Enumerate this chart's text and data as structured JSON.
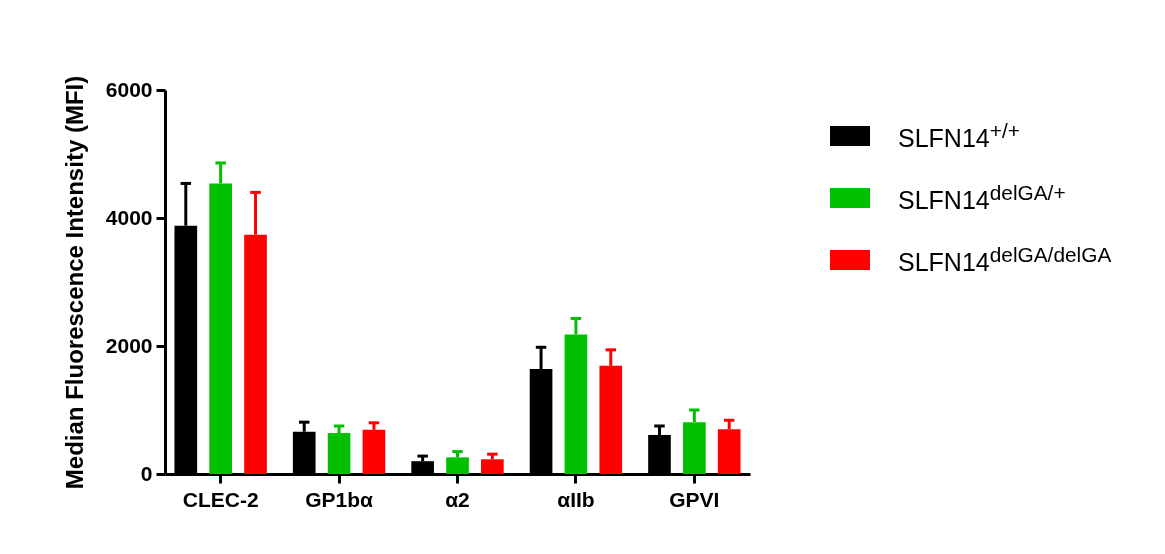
{
  "chart_data": {
    "type": "bar",
    "ylabel": "Median Fluorescence Intensity (MFI)",
    "categories": [
      "CLEC-2",
      "GP1bα",
      "α2",
      "αIIb",
      "GPVI"
    ],
    "series": [
      {
        "name": "SLFN14$^{+/+}$",
        "color": "#000000",
        "values": [
          3880,
          660,
          200,
          1640,
          610
        ],
        "errors": [
          [
            3880,
            4540
          ],
          [
            660,
            810
          ],
          [
            200,
            280
          ],
          [
            1640,
            1980
          ],
          [
            610,
            750
          ]
        ]
      },
      {
        "name": "SLFN14$^{delGA/+}$",
        "color": "#00c000",
        "values": [
          4540,
          640,
          260,
          2180,
          810
        ],
        "errors": [
          [
            4540,
            4860
          ],
          [
            640,
            750
          ],
          [
            260,
            350
          ],
          [
            2180,
            2430
          ],
          [
            810,
            1000
          ]
        ]
      },
      {
        "name": "SLFN14$^{delGA/delGA}$",
        "color": "#ff0000",
        "values": [
          3740,
          690,
          230,
          1690,
          700
        ],
        "errors": [
          [
            3740,
            4400
          ],
          [
            690,
            800
          ],
          [
            230,
            310
          ],
          [
            1690,
            1940
          ],
          [
            700,
            840
          ]
        ]
      }
    ],
    "ylim": [
      0,
      6000
    ],
    "yticks": [
      0,
      2000,
      4000,
      6000
    ],
    "grid": false,
    "legend": "right"
  }
}
